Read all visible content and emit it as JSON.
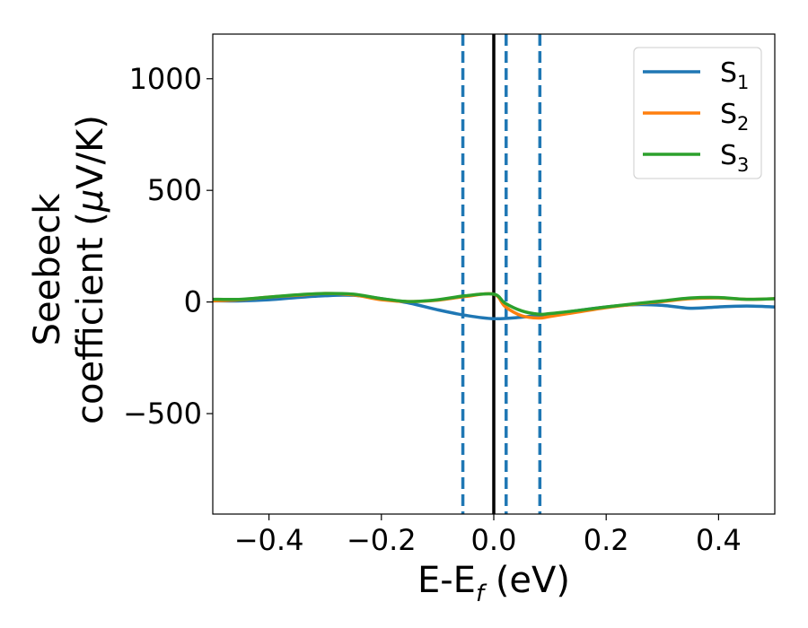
{
  "chart_data": {
    "type": "line",
    "xlabel": {
      "main": "E-E",
      "sub": "f",
      "unit": " (eV)"
    },
    "ylabel": {
      "line1": "Seebeck",
      "line2": "coefficient  (",
      "mu": "μ",
      "unit": "V/K)"
    },
    "xlim": [
      -0.5,
      0.5
    ],
    "ylim": [
      -950,
      1200
    ],
    "xticks": [
      -0.4,
      -0.2,
      0.0,
      0.2,
      0.4
    ],
    "xtick_labels": [
      "−0.4",
      "−0.2",
      "0.0",
      "0.2",
      "0.4"
    ],
    "yticks": [
      -500,
      0,
      500,
      1000
    ],
    "ytick_labels": [
      "−500",
      "0",
      "500",
      "1000"
    ],
    "grid": false,
    "legend_position": "top-right",
    "vlines": [
      {
        "x": -0.055,
        "style": "dashed",
        "color": "#1f77b4"
      },
      {
        "x": 0.0,
        "style": "solid",
        "color": "#000000"
      },
      {
        "x": 0.022,
        "style": "dashed",
        "color": "#1f77b4"
      },
      {
        "x": 0.082,
        "style": "dashed",
        "color": "#1f77b4"
      }
    ],
    "series": [
      {
        "name": "S",
        "sub": "1",
        "color": "#1f77b4",
        "x": [
          -0.5,
          -0.45,
          -0.4,
          -0.35,
          -0.3,
          -0.25,
          -0.2,
          -0.15,
          -0.1,
          -0.05,
          0.0,
          0.05,
          0.1,
          0.15,
          0.2,
          0.25,
          0.3,
          0.35,
          0.4,
          0.45,
          0.5
        ],
        "y": [
          5,
          5,
          10,
          20,
          28,
          30,
          15,
          -5,
          -35,
          -60,
          -75,
          -68,
          -55,
          -38,
          -22,
          -12,
          -15,
          -28,
          -22,
          -18,
          -22
        ]
      },
      {
        "name": "S",
        "sub": "2",
        "color": "#ff7f0e",
        "x": [
          -0.5,
          -0.45,
          -0.4,
          -0.35,
          -0.3,
          -0.25,
          -0.2,
          -0.15,
          -0.1,
          -0.05,
          0.0,
          0.02,
          0.05,
          0.08,
          0.1,
          0.15,
          0.2,
          0.25,
          0.3,
          0.35,
          0.4,
          0.45,
          0.5
        ],
        "y": [
          5,
          10,
          22,
          30,
          38,
          32,
          10,
          2,
          8,
          25,
          35,
          -20,
          -62,
          -72,
          -65,
          -45,
          -25,
          -10,
          2,
          15,
          18,
          12,
          15
        ]
      },
      {
        "name": "S",
        "sub": "3",
        "color": "#2ca02c",
        "x": [
          -0.5,
          -0.45,
          -0.4,
          -0.35,
          -0.3,
          -0.25,
          -0.2,
          -0.15,
          -0.1,
          -0.05,
          0.0,
          0.02,
          0.05,
          0.08,
          0.1,
          0.15,
          0.2,
          0.25,
          0.3,
          0.35,
          0.4,
          0.45,
          0.5
        ],
        "y": [
          12,
          12,
          22,
          32,
          38,
          35,
          15,
          2,
          10,
          28,
          35,
          -5,
          -40,
          -55,
          -52,
          -38,
          -22,
          -8,
          5,
          18,
          20,
          12,
          15
        ]
      }
    ]
  }
}
